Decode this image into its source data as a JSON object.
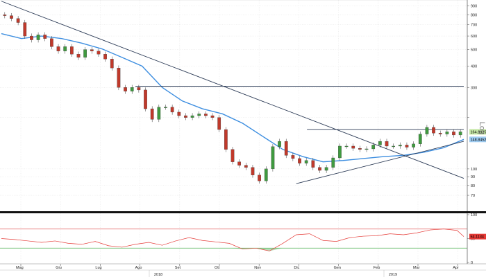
{
  "chart_data": [
    {
      "type": "candlestick",
      "title": "",
      "y_axis_label": "Log",
      "scale": "log",
      "grid": true,
      "y_ticks": [
        70,
        80,
        90,
        100,
        200,
        300,
        400,
        500,
        600,
        700,
        800,
        900
      ],
      "y_tick_labels": [
        "70",
        "80",
        "90",
        "100",
        "",
        "300",
        "400",
        "500",
        "600",
        "700",
        "800",
        "900"
      ],
      "month_labels": [
        "Mag",
        "Giu",
        "Lug",
        "Ago",
        "Set",
        "Ott",
        "Nov",
        "Dic",
        "Gen",
        "Feb",
        "Mar",
        "Apr"
      ],
      "year_labels": [
        "2018",
        "2019"
      ],
      "price_series": {
        "name": "Price",
        "x": [
          0,
          5,
          10,
          15,
          20,
          25,
          30,
          35,
          40,
          45,
          50,
          55,
          60,
          65,
          70,
          75,
          80,
          85,
          90,
          95,
          100,
          105,
          110,
          115,
          120,
          125,
          130,
          135,
          140,
          145,
          150,
          155,
          160,
          165,
          170,
          175,
          180,
          185,
          190,
          195,
          200,
          205,
          210,
          215,
          220,
          225,
          230,
          235,
          240,
          245,
          250,
          255,
          260,
          265,
          270,
          275,
          280,
          285,
          290,
          295,
          300,
          305,
          310,
          315,
          320,
          325,
          330,
          335,
          340,
          345
        ],
        "close": [
          800,
          790,
          760,
          720,
          600,
          570,
          610,
          580,
          520,
          490,
          520,
          470,
          450,
          500,
          490,
          470,
          440,
          390,
          300,
          285,
          300,
          290,
          225,
          195,
          230,
          230,
          215,
          205,
          200,
          205,
          210,
          205,
          200,
          170,
          130,
          110,
          105,
          102,
          92,
          85,
          100,
          135,
          145,
          120,
          115,
          108,
          112,
          102,
          98,
          102,
          116,
          136,
          136,
          132,
          130,
          131,
          138,
          145,
          136,
          136,
          138,
          134,
          140,
          160,
          175,
          162,
          160,
          165,
          158,
          164.89
        ]
      },
      "moving_average": {
        "name": "",
        "x": [
          0,
          15,
          30,
          45,
          60,
          75,
          90,
          105,
          120,
          135,
          150,
          165,
          180,
          195,
          210,
          225,
          240,
          255,
          270,
          285,
          300,
          315,
          330,
          345
        ],
        "values": [
          620,
          580,
          600,
          580,
          545,
          505,
          450,
          400,
          300,
          250,
          225,
          210,
          185,
          155,
          130,
          118,
          110,
          112,
          115,
          118,
          120,
          125,
          133,
          148.84
        ]
      },
      "trendlines": [
        {
          "x": [
            0,
            345
          ],
          "y": [
            960,
            88
          ]
        },
        {
          "x": [
            220,
            345
          ],
          "y": [
            82,
            145
          ]
        },
        {
          "x": [
            100,
            345
          ],
          "y": [
            305,
            305
          ]
        },
        {
          "x": [
            228,
            345
          ],
          "y": [
            170,
            170
          ]
        }
      ],
      "last_price_badge": {
        "text": "164.8925",
        "color": "#2e7d32"
      },
      "ma_badge": {
        "text": "148.8452",
        "color": "#1e88e5"
      }
    },
    {
      "type": "line",
      "title": "",
      "y_range": [
        0,
        100
      ],
      "y_ticks": [
        0,
        50,
        100
      ],
      "y_tick_labels": [
        "0",
        "50",
        "100"
      ],
      "overbought": 70,
      "oversold": 30,
      "series": [
        {
          "name": "",
          "x": [
            0,
            10,
            20,
            30,
            40,
            50,
            60,
            70,
            80,
            90,
            100,
            110,
            120,
            130,
            140,
            150,
            160,
            170,
            180,
            190,
            200,
            210,
            220,
            230,
            240,
            250,
            260,
            270,
            280,
            290,
            300,
            310,
            320,
            330,
            340,
            345
          ],
          "values": [
            50,
            48,
            45,
            42,
            45,
            40,
            38,
            44,
            35,
            32,
            38,
            42,
            36,
            45,
            52,
            46,
            43,
            40,
            28,
            30,
            24,
            40,
            58,
            60,
            46,
            44,
            52,
            55,
            56,
            60,
            58,
            62,
            68,
            70,
            67,
            54.11
          ]
        }
      ],
      "last_value_badge": {
        "text": "54.1134",
        "color": "#e53935"
      }
    }
  ]
}
